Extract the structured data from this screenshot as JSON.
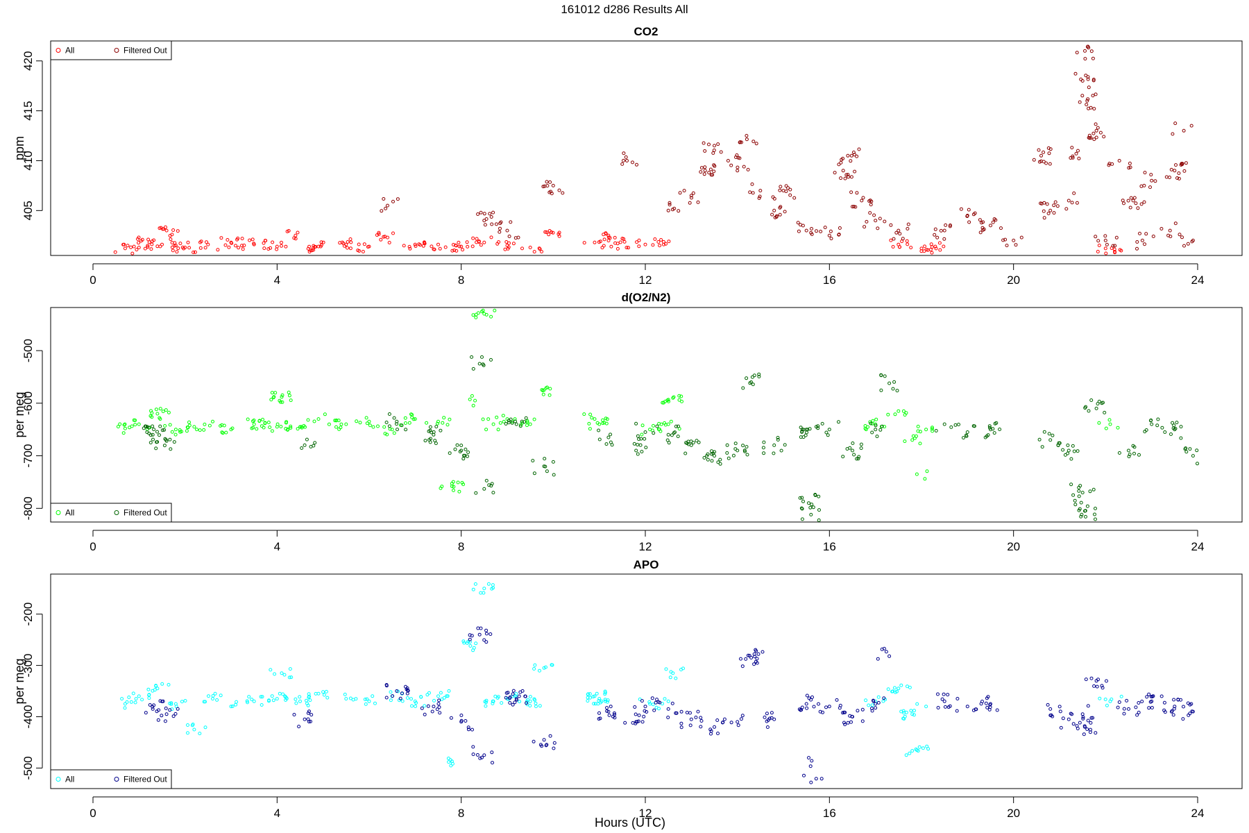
{
  "figure_title": "161012   d286   Results All",
  "xlabel": "Hours (UTC)",
  "chart_data": [
    {
      "type": "scatter",
      "title": "CO2",
      "ylabel": "ppm",
      "xlim": [
        0,
        24
      ],
      "ylim": [
        400.5,
        422
      ],
      "xticks": [
        0,
        4,
        8,
        12,
        16,
        20,
        24
      ],
      "yticks": [
        405,
        410,
        415,
        420
      ],
      "legend_position": "top-left",
      "series": [
        {
          "name": "All",
          "color": "#ff0000"
        },
        {
          "name": "Filtered Out",
          "color": "#8b0000"
        }
      ],
      "data_summary": {
        "all_points": [
          [
            0.7,
            401.2
          ],
          [
            1.0,
            401.3
          ],
          [
            1.2,
            402.1
          ],
          [
            1.5,
            401.6
          ],
          [
            1.6,
            403.0
          ],
          [
            1.8,
            401.5
          ],
          [
            2.0,
            401.3
          ],
          [
            2.5,
            401.6
          ],
          [
            3.0,
            401.8
          ],
          [
            3.5,
            401.6
          ],
          [
            4.0,
            401.4
          ],
          [
            4.4,
            402.5
          ],
          [
            4.9,
            401.4
          ],
          [
            5.5,
            401.6
          ],
          [
            6.0,
            401.4
          ],
          [
            6.4,
            402.3
          ],
          [
            7.0,
            401.6
          ],
          [
            7.5,
            401.6
          ],
          [
            8.0,
            401.4
          ],
          [
            8.5,
            401.8
          ],
          [
            9.0,
            401.5
          ],
          [
            9.5,
            401.3
          ],
          [
            9.9,
            402.6
          ],
          [
            10.9,
            401.8
          ],
          [
            11.2,
            402.5
          ],
          [
            11.4,
            401.7
          ],
          [
            12.0,
            401.6
          ],
          [
            12.4,
            401.6
          ],
          [
            17.5,
            401.6
          ],
          [
            18.0,
            401.2
          ],
          [
            18.3,
            401.4
          ],
          [
            22.0,
            401.2
          ],
          [
            22.2,
            400.8
          ]
        ],
        "filtered_out_points": [
          [
            6.4,
            405.5
          ],
          [
            8.5,
            404.0
          ],
          [
            9.0,
            403.0
          ],
          [
            10.0,
            407.5
          ],
          [
            11.6,
            410.0
          ],
          [
            12.5,
            405.0
          ],
          [
            13.0,
            406.5
          ],
          [
            13.3,
            409.0
          ],
          [
            13.5,
            411.5
          ],
          [
            13.8,
            410.0
          ],
          [
            14.0,
            409.0
          ],
          [
            14.2,
            412.5
          ],
          [
            14.5,
            407.0
          ],
          [
            14.8,
            405.0
          ],
          [
            15.0,
            407.0
          ],
          [
            15.5,
            403.0
          ],
          [
            16.0,
            402.5
          ],
          [
            16.3,
            409.0
          ],
          [
            16.4,
            410.5
          ],
          [
            16.7,
            406.0
          ],
          [
            17.0,
            404.0
          ],
          [
            17.5,
            403.0
          ],
          [
            18.5,
            403.0
          ],
          [
            19.0,
            404.5
          ],
          [
            19.5,
            403.5
          ],
          [
            20.0,
            402.0
          ],
          [
            20.6,
            410.5
          ],
          [
            20.8,
            405.0
          ],
          [
            21.2,
            406.0
          ],
          [
            21.4,
            411.0
          ],
          [
            21.5,
            418.0
          ],
          [
            21.55,
            421.0
          ],
          [
            21.6,
            416.0
          ],
          [
            21.8,
            413.0
          ],
          [
            22.0,
            402.0
          ],
          [
            22.3,
            410.0
          ],
          [
            22.6,
            406.0
          ],
          [
            22.8,
            402.0
          ],
          [
            23.0,
            408.0
          ],
          [
            23.4,
            403.0
          ],
          [
            23.5,
            409.0
          ],
          [
            23.7,
            413.0
          ],
          [
            23.9,
            402.0
          ]
        ]
      }
    },
    {
      "type": "scatter",
      "title": "d(O2/N2)",
      "ylabel": "per meg",
      "xlim": [
        0,
        24
      ],
      "ylim": [
        -826,
        -418
      ],
      "xticks": [
        0,
        4,
        8,
        12,
        16,
        20,
        24
      ],
      "yticks": [
        -800,
        -700,
        -600,
        -500
      ],
      "legend_position": "bottom-left",
      "series": [
        {
          "name": "All",
          "color": "#00ff00"
        },
        {
          "name": "Filtered Out",
          "color": "#006400"
        }
      ],
      "data_summary": {
        "all_points": [
          [
            0.7,
            -648
          ],
          [
            1.0,
            -640
          ],
          [
            1.4,
            -620
          ],
          [
            1.8,
            -650
          ],
          [
            2.2,
            -645
          ],
          [
            2.6,
            -635
          ],
          [
            3.0,
            -650
          ],
          [
            3.5,
            -640
          ],
          [
            4.0,
            -645
          ],
          [
            4.1,
            -588
          ],
          [
            4.5,
            -645
          ],
          [
            4.9,
            -630
          ],
          [
            5.5,
            -640
          ],
          [
            6.0,
            -635
          ],
          [
            6.5,
            -650
          ],
          [
            7.0,
            -630
          ],
          [
            7.5,
            -635
          ],
          [
            7.8,
            -758
          ],
          [
            8.3,
            -595
          ],
          [
            8.5,
            -430
          ],
          [
            8.7,
            -640
          ],
          [
            9.0,
            -630
          ],
          [
            9.5,
            -640
          ],
          [
            9.8,
            -575
          ],
          [
            10.9,
            -630
          ],
          [
            11.0,
            -640
          ],
          [
            12.1,
            -650
          ],
          [
            12.5,
            -640
          ],
          [
            12.6,
            -590
          ],
          [
            17.0,
            -640
          ],
          [
            17.5,
            -615
          ],
          [
            17.8,
            -670
          ],
          [
            17.9,
            -735
          ],
          [
            18.1,
            -650
          ],
          [
            22.1,
            -640
          ]
        ],
        "filtered_out_points": [
          [
            1.3,
            -660
          ],
          [
            1.6,
            -672
          ],
          [
            4.6,
            -680
          ],
          [
            6.6,
            -635
          ],
          [
            7.4,
            -660
          ],
          [
            8.0,
            -690
          ],
          [
            8.4,
            -525
          ],
          [
            8.5,
            -763
          ],
          [
            9.2,
            -640
          ],
          [
            9.8,
            -720
          ],
          [
            11.2,
            -665
          ],
          [
            11.8,
            -690
          ],
          [
            12.0,
            -655
          ],
          [
            12.5,
            -660
          ],
          [
            13.0,
            -680
          ],
          [
            13.5,
            -700
          ],
          [
            14.0,
            -690
          ],
          [
            14.3,
            -560
          ],
          [
            14.8,
            -680
          ],
          [
            15.5,
            -650
          ],
          [
            15.55,
            -790
          ],
          [
            15.6,
            -812
          ],
          [
            16.0,
            -650
          ],
          [
            16.5,
            -690
          ],
          [
            17.0,
            -650
          ],
          [
            17.3,
            -562
          ],
          [
            18.5,
            -640
          ],
          [
            19.0,
            -655
          ],
          [
            19.5,
            -650
          ],
          [
            20.8,
            -670
          ],
          [
            21.2,
            -690
          ],
          [
            21.5,
            -770
          ],
          [
            21.55,
            -805
          ],
          [
            21.8,
            -610
          ],
          [
            22.5,
            -690
          ],
          [
            23.0,
            -640
          ],
          [
            23.5,
            -650
          ],
          [
            23.9,
            -700
          ]
        ]
      }
    },
    {
      "type": "scatter",
      "title": "APO",
      "ylabel": "per meg",
      "xlim": [
        0,
        24
      ],
      "ylim": [
        -540,
        -122
      ],
      "xticks": [
        0,
        4,
        8,
        12,
        16,
        20,
        24
      ],
      "yticks": [
        -500,
        -400,
        -300,
        -200
      ],
      "legend_position": "bottom-left",
      "series": [
        {
          "name": "All",
          "color": "#00ffff"
        },
        {
          "name": "Filtered Out",
          "color": "#00008b"
        }
      ],
      "data_summary": {
        "all_points": [
          [
            0.7,
            -375
          ],
          [
            1.0,
            -360
          ],
          [
            1.4,
            -345
          ],
          [
            1.8,
            -375
          ],
          [
            2.2,
            -425
          ],
          [
            2.6,
            -365
          ],
          [
            3.0,
            -380
          ],
          [
            3.5,
            -370
          ],
          [
            4.0,
            -365
          ],
          [
            4.1,
            -315
          ],
          [
            4.5,
            -370
          ],
          [
            4.9,
            -355
          ],
          [
            5.5,
            -365
          ],
          [
            6.0,
            -370
          ],
          [
            6.5,
            -360
          ],
          [
            7.0,
            -370
          ],
          [
            7.5,
            -360
          ],
          [
            7.8,
            -487
          ],
          [
            8.2,
            -262
          ],
          [
            8.5,
            -150
          ],
          [
            8.7,
            -370
          ],
          [
            9.0,
            -365
          ],
          [
            9.5,
            -370
          ],
          [
            9.8,
            -305
          ],
          [
            10.9,
            -360
          ],
          [
            11.0,
            -365
          ],
          [
            12.1,
            -375
          ],
          [
            12.5,
            -370
          ],
          [
            12.6,
            -315
          ],
          [
            17.0,
            -370
          ],
          [
            17.5,
            -345
          ],
          [
            17.8,
            -395
          ],
          [
            17.9,
            -465
          ],
          [
            18.1,
            -380
          ],
          [
            22.1,
            -370
          ]
        ],
        "filtered_out_points": [
          [
            1.3,
            -385
          ],
          [
            1.6,
            -395
          ],
          [
            4.6,
            -405
          ],
          [
            6.6,
            -350
          ],
          [
            7.4,
            -380
          ],
          [
            8.0,
            -410
          ],
          [
            8.4,
            -240
          ],
          [
            8.5,
            -475
          ],
          [
            9.2,
            -365
          ],
          [
            9.8,
            -445
          ],
          [
            11.2,
            -390
          ],
          [
            11.8,
            -410
          ],
          [
            12.0,
            -380
          ],
          [
            12.5,
            -385
          ],
          [
            13.0,
            -405
          ],
          [
            13.5,
            -420
          ],
          [
            14.0,
            -410
          ],
          [
            14.3,
            -285
          ],
          [
            14.8,
            -405
          ],
          [
            15.5,
            -375
          ],
          [
            15.55,
            -480
          ],
          [
            15.6,
            -528
          ],
          [
            16.0,
            -380
          ],
          [
            16.5,
            -400
          ],
          [
            17.0,
            -375
          ],
          [
            17.3,
            -282
          ],
          [
            18.5,
            -370
          ],
          [
            19.0,
            -380
          ],
          [
            19.5,
            -375
          ],
          [
            20.8,
            -385
          ],
          [
            21.2,
            -405
          ],
          [
            21.5,
            -395
          ],
          [
            21.55,
            -420
          ],
          [
            21.8,
            -330
          ],
          [
            22.5,
            -385
          ],
          [
            23.0,
            -370
          ],
          [
            23.5,
            -380
          ],
          [
            23.9,
            -390
          ]
        ]
      }
    }
  ]
}
